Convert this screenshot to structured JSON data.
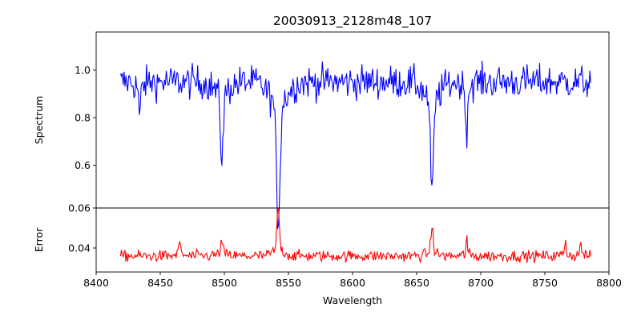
{
  "chart_data": [
    {
      "type": "line",
      "title": "20030913_2128m48_107",
      "xlabel": "",
      "ylabel": "Spectrum",
      "xlim": [
        8400,
        8800
      ],
      "ylim": [
        0.42,
        1.16
      ],
      "yticks": [
        "0.6",
        "0.8",
        "1.0"
      ],
      "color": "#0000ff",
      "x_range": [
        8419,
        8786
      ],
      "continuum": 0.95,
      "noise": 0.05,
      "absorption_lines": [
        {
          "center": 8498,
          "depth": 0.26,
          "width": 1.2
        },
        {
          "center": 8542,
          "depth": 0.5,
          "width": 1.4
        },
        {
          "center": 8662,
          "depth": 0.38,
          "width": 1.3
        },
        {
          "center": 8434,
          "depth": 0.14,
          "width": 0.6
        },
        {
          "center": 8689,
          "depth": 0.24,
          "width": 0.5
        }
      ]
    },
    {
      "type": "line",
      "title": "",
      "xlabel": "Wavelength",
      "ylabel": "Error",
      "xlim": [
        8400,
        8800
      ],
      "ylim": [
        0.028,
        0.06
      ],
      "xticks": [
        "8400",
        "8450",
        "8500",
        "8550",
        "8600",
        "8650",
        "8700",
        "8750",
        "8800"
      ],
      "yticks": [
        "0.04",
        "0.06"
      ],
      "color": "#ff0000",
      "x_range": [
        8419,
        8786
      ],
      "baseline": 0.036,
      "noise": 0.002,
      "peaks": [
        {
          "center": 8542,
          "height": 0.0215,
          "width": 0.9
        },
        {
          "center": 8662,
          "height": 0.0125,
          "width": 0.9
        },
        {
          "center": 8498,
          "height": 0.006,
          "width": 1.0
        },
        {
          "center": 8465,
          "height": 0.008,
          "width": 0.5
        },
        {
          "center": 8689,
          "height": 0.01,
          "width": 0.4
        },
        {
          "center": 8766,
          "height": 0.007,
          "width": 0.6
        },
        {
          "center": 8778,
          "height": 0.008,
          "width": 0.4
        }
      ]
    }
  ]
}
